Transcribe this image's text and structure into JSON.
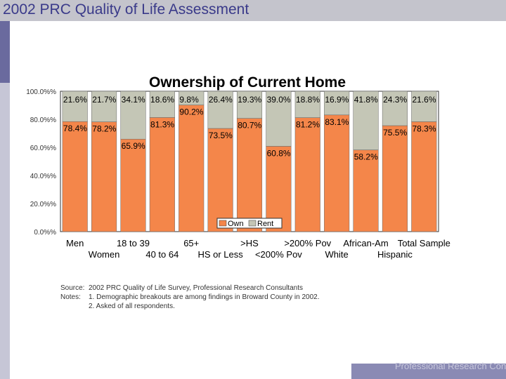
{
  "slide": {
    "title": "2002 PRC Quality of Life Assessment",
    "footer": "Professional Research Consultants"
  },
  "colors": {
    "own": "#f4864a",
    "rent": "#c4c6b6",
    "title_text": "#3a3a8a"
  },
  "notes": {
    "source_label": "Source:",
    "source_text": "2002 PRC Quality of Life Survey, Professional Research Consultants",
    "notes_label": "Notes:",
    "note1": "1. Demographic breakouts are among findings in Broward County in 2002.",
    "note2": "2. Asked of all respondents."
  },
  "chart_data": {
    "type": "bar",
    "stacked": true,
    "title": "Ownership of Current Home",
    "categories": [
      "Men",
      "Women",
      "18 to 39",
      "40 to 64",
      "65+",
      "HS or Less",
      ">HS",
      "<200% Pov",
      ">200% Pov",
      "White",
      "African-Am",
      "Hispanic",
      "Total Sample"
    ],
    "series": [
      {
        "name": "Own",
        "values": [
          78.4,
          78.2,
          65.9,
          81.3,
          90.2,
          73.5,
          80.7,
          60.8,
          81.2,
          83.1,
          58.2,
          75.5,
          78.3
        ]
      },
      {
        "name": "Rent",
        "values": [
          21.6,
          21.7,
          34.1,
          18.6,
          9.8,
          26.4,
          19.3,
          39.0,
          18.8,
          16.9,
          41.8,
          24.3,
          21.6
        ]
      }
    ],
    "ylim": [
      0,
      100
    ],
    "yticks": [
      "0.0%%",
      "20.0%%",
      "40.0%%",
      "60.0%%",
      "80.0%%",
      "100.0%%"
    ],
    "legend": [
      "Own",
      "Rent"
    ],
    "legend_position": "bottom-center"
  }
}
